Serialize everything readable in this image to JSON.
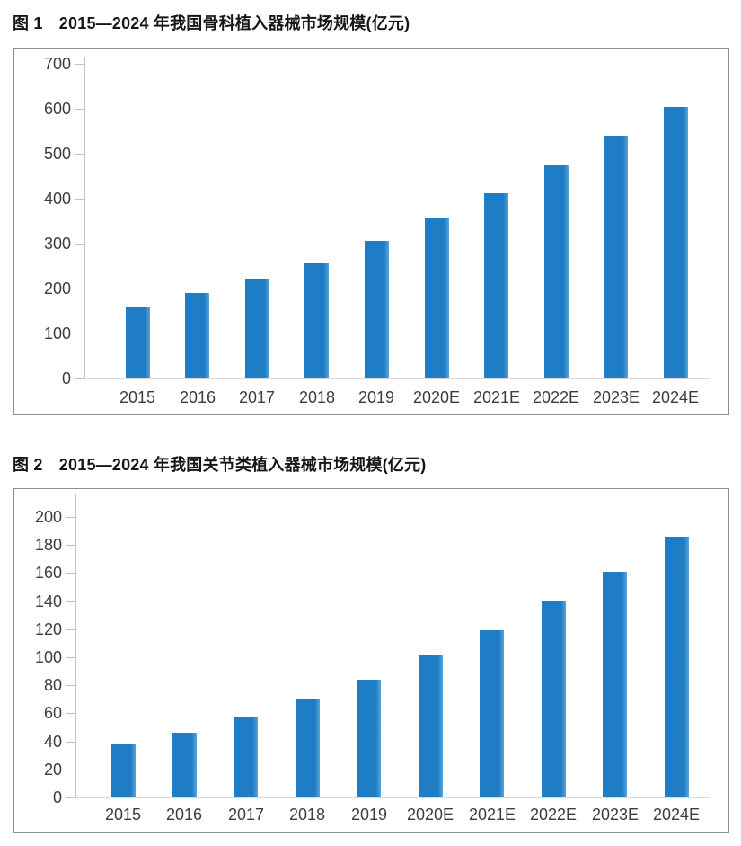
{
  "page": {
    "background": "#ffffff"
  },
  "chart_data": [
    {
      "type": "bar",
      "figure_label": "图 1",
      "title": "图 1　2015—2024 年我国骨科植入器械市场规模(亿元)",
      "categories": [
        "2015",
        "2016",
        "2017",
        "2018",
        "2019",
        "2020E",
        "2021E",
        "2022E",
        "2023E",
        "2024E"
      ],
      "values": [
        160,
        190,
        222,
        258,
        306,
        358,
        412,
        476,
        540,
        603
      ],
      "xlabel": "",
      "ylabel": "",
      "ylim": [
        0,
        700
      ],
      "ytick_step": 100,
      "grid": false,
      "legend": null,
      "bar_color": "#1e7dc4",
      "bar_highlight_color": "#5aa3d8",
      "axis_color": "#c2c2c2",
      "baseline_color": "#dadada",
      "label_color": "#3d3d3d"
    },
    {
      "type": "bar",
      "figure_label": "图 2",
      "title": "图 2　2015—2024 年我国关节类植入器械市场规模(亿元)",
      "categories": [
        "2015",
        "2016",
        "2017",
        "2018",
        "2019",
        "2020E",
        "2021E",
        "2022E",
        "2023E",
        "2024E"
      ],
      "values": [
        38,
        46,
        58,
        70,
        84,
        102,
        119,
        140,
        161,
        186
      ],
      "xlabel": "",
      "ylabel": "",
      "ylim": [
        0,
        200
      ],
      "ytick_step": 20,
      "grid": false,
      "legend": null,
      "bar_color": "#1e7dc4",
      "bar_highlight_color": "#5aa3d8",
      "axis_color": "#c2c2c2",
      "baseline_color": "#dadada",
      "label_color": "#3d3d3d"
    }
  ]
}
